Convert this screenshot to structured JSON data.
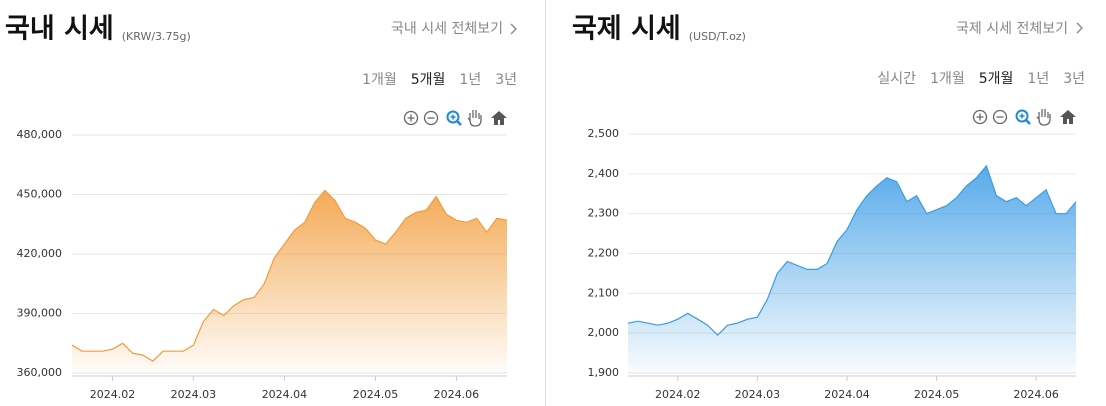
{
  "chart_data": [
    {
      "type": "area",
      "title": "국내 시세",
      "subtitle": "(KRW/3.75g)",
      "link": "국내 시세 전체보기",
      "periods": [
        "1개월",
        "5개월",
        "1년",
        "3년"
      ],
      "selected_period": 1,
      "color": "#f29b38",
      "grid": true,
      "categories": [
        null,
        null,
        null,
        null,
        "2024.02",
        null,
        null,
        null,
        null,
        null,
        null,
        null,
        "2024.03",
        null,
        null,
        null,
        null,
        null,
        null,
        null,
        null,
        "2024.04",
        null,
        null,
        null,
        null,
        null,
        null,
        null,
        null,
        "2024.05",
        null,
        null,
        null,
        null,
        null,
        null,
        null,
        "2024.06",
        null,
        null,
        null,
        null,
        null
      ],
      "values": [
        374000,
        371000,
        371000,
        371000,
        372000,
        375000,
        370000,
        369000,
        366000,
        371000,
        371000,
        371000,
        374000,
        386000,
        392000,
        389000,
        394000,
        397000,
        398000,
        405000,
        418000,
        425000,
        432000,
        436000,
        446000,
        452000,
        447000,
        438000,
        436000,
        433000,
        427000,
        425000,
        431000,
        438000,
        441000,
        442000,
        449000,
        440000,
        437000,
        436000,
        438000,
        431000,
        438000,
        437000
      ],
      "ylim": [
        360000,
        480000
      ],
      "yticks": [
        {
          "value": 360000,
          "label": "360,000"
        },
        {
          "value": 390000,
          "label": "390,000"
        },
        {
          "value": 420000,
          "label": "420,000"
        },
        {
          "value": 450000,
          "label": "450,000"
        },
        {
          "value": 480000,
          "label": "480,000"
        }
      ]
    },
    {
      "type": "area",
      "title": "국제 시세",
      "subtitle": "(USD/T.oz)",
      "link": "국제 시세 전체보기",
      "periods": [
        "실시간",
        "1개월",
        "5개월",
        "1년",
        "3년"
      ],
      "selected_period": 2,
      "color": "#3a9be6",
      "grid": true,
      "categories": [
        null,
        null,
        null,
        null,
        null,
        "2024.02",
        null,
        null,
        null,
        null,
        null,
        null,
        null,
        "2024.03",
        null,
        null,
        null,
        null,
        null,
        null,
        null,
        null,
        "2024.04",
        null,
        null,
        null,
        null,
        null,
        null,
        null,
        null,
        "2024.05",
        null,
        null,
        null,
        null,
        null,
        null,
        null,
        null,
        null,
        "2024.06",
        null,
        null,
        null,
        null
      ],
      "values": [
        2025,
        2030,
        2025,
        2020,
        2025,
        2035,
        2050,
        2035,
        2020,
        1995,
        2020,
        2025,
        2035,
        2040,
        2085,
        2150,
        2180,
        2170,
        2160,
        2160,
        2175,
        2230,
        2260,
        2310,
        2345,
        2370,
        2390,
        2380,
        2330,
        2345,
        2300,
        2310,
        2320,
        2340,
        2370,
        2390,
        2420,
        2345,
        2330,
        2340,
        2320,
        2340,
        2360,
        2300,
        2300,
        2330
      ],
      "ylim": [
        1900,
        2500
      ],
      "yticks": [
        {
          "value": 1900,
          "label": "1,900"
        },
        {
          "value": 2000,
          "label": "2,000"
        },
        {
          "value": 2100,
          "label": "2,100"
        },
        {
          "value": 2200,
          "label": "2,200"
        },
        {
          "value": 2300,
          "label": "2,300"
        },
        {
          "value": 2400,
          "label": "2,400"
        },
        {
          "value": 2500,
          "label": "2,500"
        }
      ]
    }
  ]
}
